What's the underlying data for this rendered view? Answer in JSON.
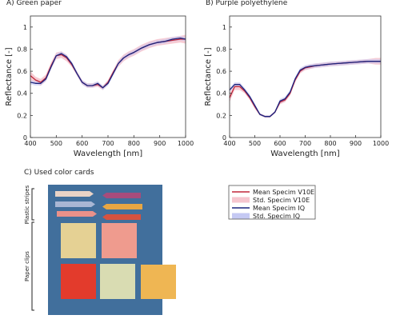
{
  "chart_data": [
    {
      "type": "line",
      "title": "A) Green paper",
      "xlabel": "Wavelength [nm]",
      "ylabel": "Reflectance [-]",
      "xlim": [
        400,
        1000
      ],
      "ylim": [
        0,
        1.1
      ],
      "xticks": [
        "400",
        "500",
        "600",
        "700",
        "800",
        "900",
        "1000"
      ],
      "yticks": [
        "0",
        "0.2",
        "0.4",
        "0.6",
        "0.8",
        "1"
      ],
      "series": [
        {
          "name": "Mean Specim V10E",
          "color": "#c0273a",
          "x": [
            400,
            420,
            440,
            460,
            480,
            500,
            520,
            540,
            560,
            580,
            600,
            620,
            640,
            660,
            680,
            700,
            720,
            740,
            760,
            780,
            800,
            830,
            860,
            890,
            920,
            950,
            980,
            1000
          ],
          "y": [
            0.56,
            0.52,
            0.5,
            0.54,
            0.65,
            0.74,
            0.75,
            0.72,
            0.66,
            0.58,
            0.5,
            0.47,
            0.47,
            0.48,
            0.45,
            0.5,
            0.59,
            0.67,
            0.72,
            0.75,
            0.77,
            0.81,
            0.84,
            0.86,
            0.87,
            0.88,
            0.89,
            0.89
          ],
          "std": [
            0.04,
            0.03,
            0.03,
            0.03,
            0.03,
            0.03,
            0.03,
            0.03,
            0.02,
            0.02,
            0.02,
            0.02,
            0.02,
            0.02,
            0.02,
            0.02,
            0.02,
            0.03,
            0.03,
            0.03,
            0.03,
            0.03,
            0.03,
            0.03,
            0.03,
            0.03,
            0.03,
            0.04
          ]
        },
        {
          "name": "Mean Specim IQ",
          "color": "#1a237e",
          "x": [
            400,
            420,
            440,
            460,
            480,
            500,
            520,
            540,
            560,
            580,
            600,
            620,
            640,
            660,
            680,
            700,
            720,
            740,
            760,
            780,
            800,
            830,
            860,
            890,
            920,
            950,
            980,
            1000
          ],
          "y": [
            0.5,
            0.49,
            0.49,
            0.53,
            0.64,
            0.74,
            0.76,
            0.73,
            0.67,
            0.58,
            0.5,
            0.47,
            0.47,
            0.49,
            0.45,
            0.49,
            0.58,
            0.67,
            0.72,
            0.75,
            0.77,
            0.81,
            0.84,
            0.86,
            0.87,
            0.89,
            0.9,
            0.89
          ],
          "std": [
            0.02,
            0.02,
            0.02,
            0.02,
            0.02,
            0.02,
            0.02,
            0.02,
            0.02,
            0.02,
            0.02,
            0.02,
            0.02,
            0.02,
            0.02,
            0.02,
            0.02,
            0.02,
            0.02,
            0.02,
            0.02,
            0.02,
            0.02,
            0.02,
            0.02,
            0.02,
            0.02,
            0.02
          ]
        }
      ]
    },
    {
      "type": "line",
      "title": "B) Purple polyethylene",
      "xlabel": "Wavelength [nm]",
      "ylabel": "Reflectance [-]",
      "xlim": [
        400,
        1000
      ],
      "ylim": [
        0,
        1.1
      ],
      "xticks": [
        "400",
        "500",
        "600",
        "700",
        "800",
        "900",
        "1000"
      ],
      "yticks": [
        "0",
        "0.2",
        "0.4",
        "0.6",
        "0.8",
        "1"
      ],
      "series": [
        {
          "name": "Mean Specim V10E",
          "color": "#c0273a",
          "x": [
            400,
            420,
            440,
            460,
            480,
            500,
            520,
            540,
            560,
            580,
            600,
            620,
            640,
            660,
            680,
            700,
            720,
            740,
            760,
            780,
            800,
            830,
            860,
            890,
            920,
            950,
            980,
            1000
          ],
          "y": [
            0.36,
            0.46,
            0.46,
            0.42,
            0.36,
            0.28,
            0.21,
            0.19,
            0.19,
            0.23,
            0.32,
            0.34,
            0.4,
            0.52,
            0.6,
            0.63,
            0.64,
            0.65,
            0.655,
            0.66,
            0.665,
            0.67,
            0.675,
            0.68,
            0.685,
            0.69,
            0.69,
            0.69
          ],
          "std": [
            0.04,
            0.03,
            0.03,
            0.02,
            0.02,
            0.02,
            0.01,
            0.01,
            0.01,
            0.01,
            0.02,
            0.02,
            0.02,
            0.02,
            0.02,
            0.02,
            0.02,
            0.02,
            0.02,
            0.02,
            0.02,
            0.02,
            0.02,
            0.02,
            0.02,
            0.02,
            0.03,
            0.03
          ]
        },
        {
          "name": "Mean Specim IQ",
          "color": "#1a237e",
          "x": [
            400,
            420,
            440,
            460,
            480,
            500,
            520,
            540,
            560,
            580,
            600,
            620,
            640,
            660,
            680,
            700,
            720,
            740,
            760,
            780,
            800,
            830,
            860,
            890,
            920,
            950,
            980,
            1000
          ],
          "y": [
            0.43,
            0.48,
            0.48,
            0.43,
            0.37,
            0.29,
            0.21,
            0.19,
            0.19,
            0.23,
            0.33,
            0.35,
            0.41,
            0.53,
            0.61,
            0.635,
            0.645,
            0.65,
            0.655,
            0.66,
            0.665,
            0.67,
            0.675,
            0.68,
            0.685,
            0.69,
            0.69,
            0.69
          ],
          "std": [
            0.02,
            0.02,
            0.02,
            0.02,
            0.02,
            0.02,
            0.01,
            0.01,
            0.01,
            0.01,
            0.02,
            0.02,
            0.02,
            0.02,
            0.02,
            0.02,
            0.02,
            0.02,
            0.02,
            0.02,
            0.02,
            0.02,
            0.02,
            0.02,
            0.02,
            0.02,
            0.02,
            0.02
          ]
        }
      ]
    }
  ],
  "legend": {
    "entries": [
      {
        "label": "Mean Specim V10E",
        "color": "#c0273a",
        "kind": "line"
      },
      {
        "label": "Std. Specim V10E",
        "color": "#f6c6cf",
        "kind": "band"
      },
      {
        "label": "Mean Specim IQ",
        "color": "#1a237e",
        "kind": "line"
      },
      {
        "label": "Std. Specim IQ",
        "color": "#c5c9f3",
        "kind": "band"
      }
    ]
  },
  "cards_panel": {
    "title": "C) Used color cards",
    "label_stripes": "Plastic stripes",
    "label_clips": "Paper clips",
    "background": "#416f9c",
    "stripes": [
      {
        "color": "#e9d3c6",
        "side": "left"
      },
      {
        "color": "#a9b7d4",
        "side": "left"
      },
      {
        "color": "#e9918a",
        "side": "left"
      },
      {
        "color": "#a74c7c",
        "side": "right"
      },
      {
        "color": "#e7a643",
        "side": "right"
      },
      {
        "color": "#d6523f",
        "side": "right"
      }
    ],
    "clips": [
      {
        "color": "#e5d194"
      },
      {
        "color": "#ef9b8e"
      },
      {
        "color": "#e33b2c"
      },
      {
        "color": "#d9dcb2"
      },
      {
        "color": "#efb653"
      }
    ]
  },
  "colors": {
    "v10e_band": "#f6c6cf",
    "iq_band": "#c5c9f3"
  }
}
